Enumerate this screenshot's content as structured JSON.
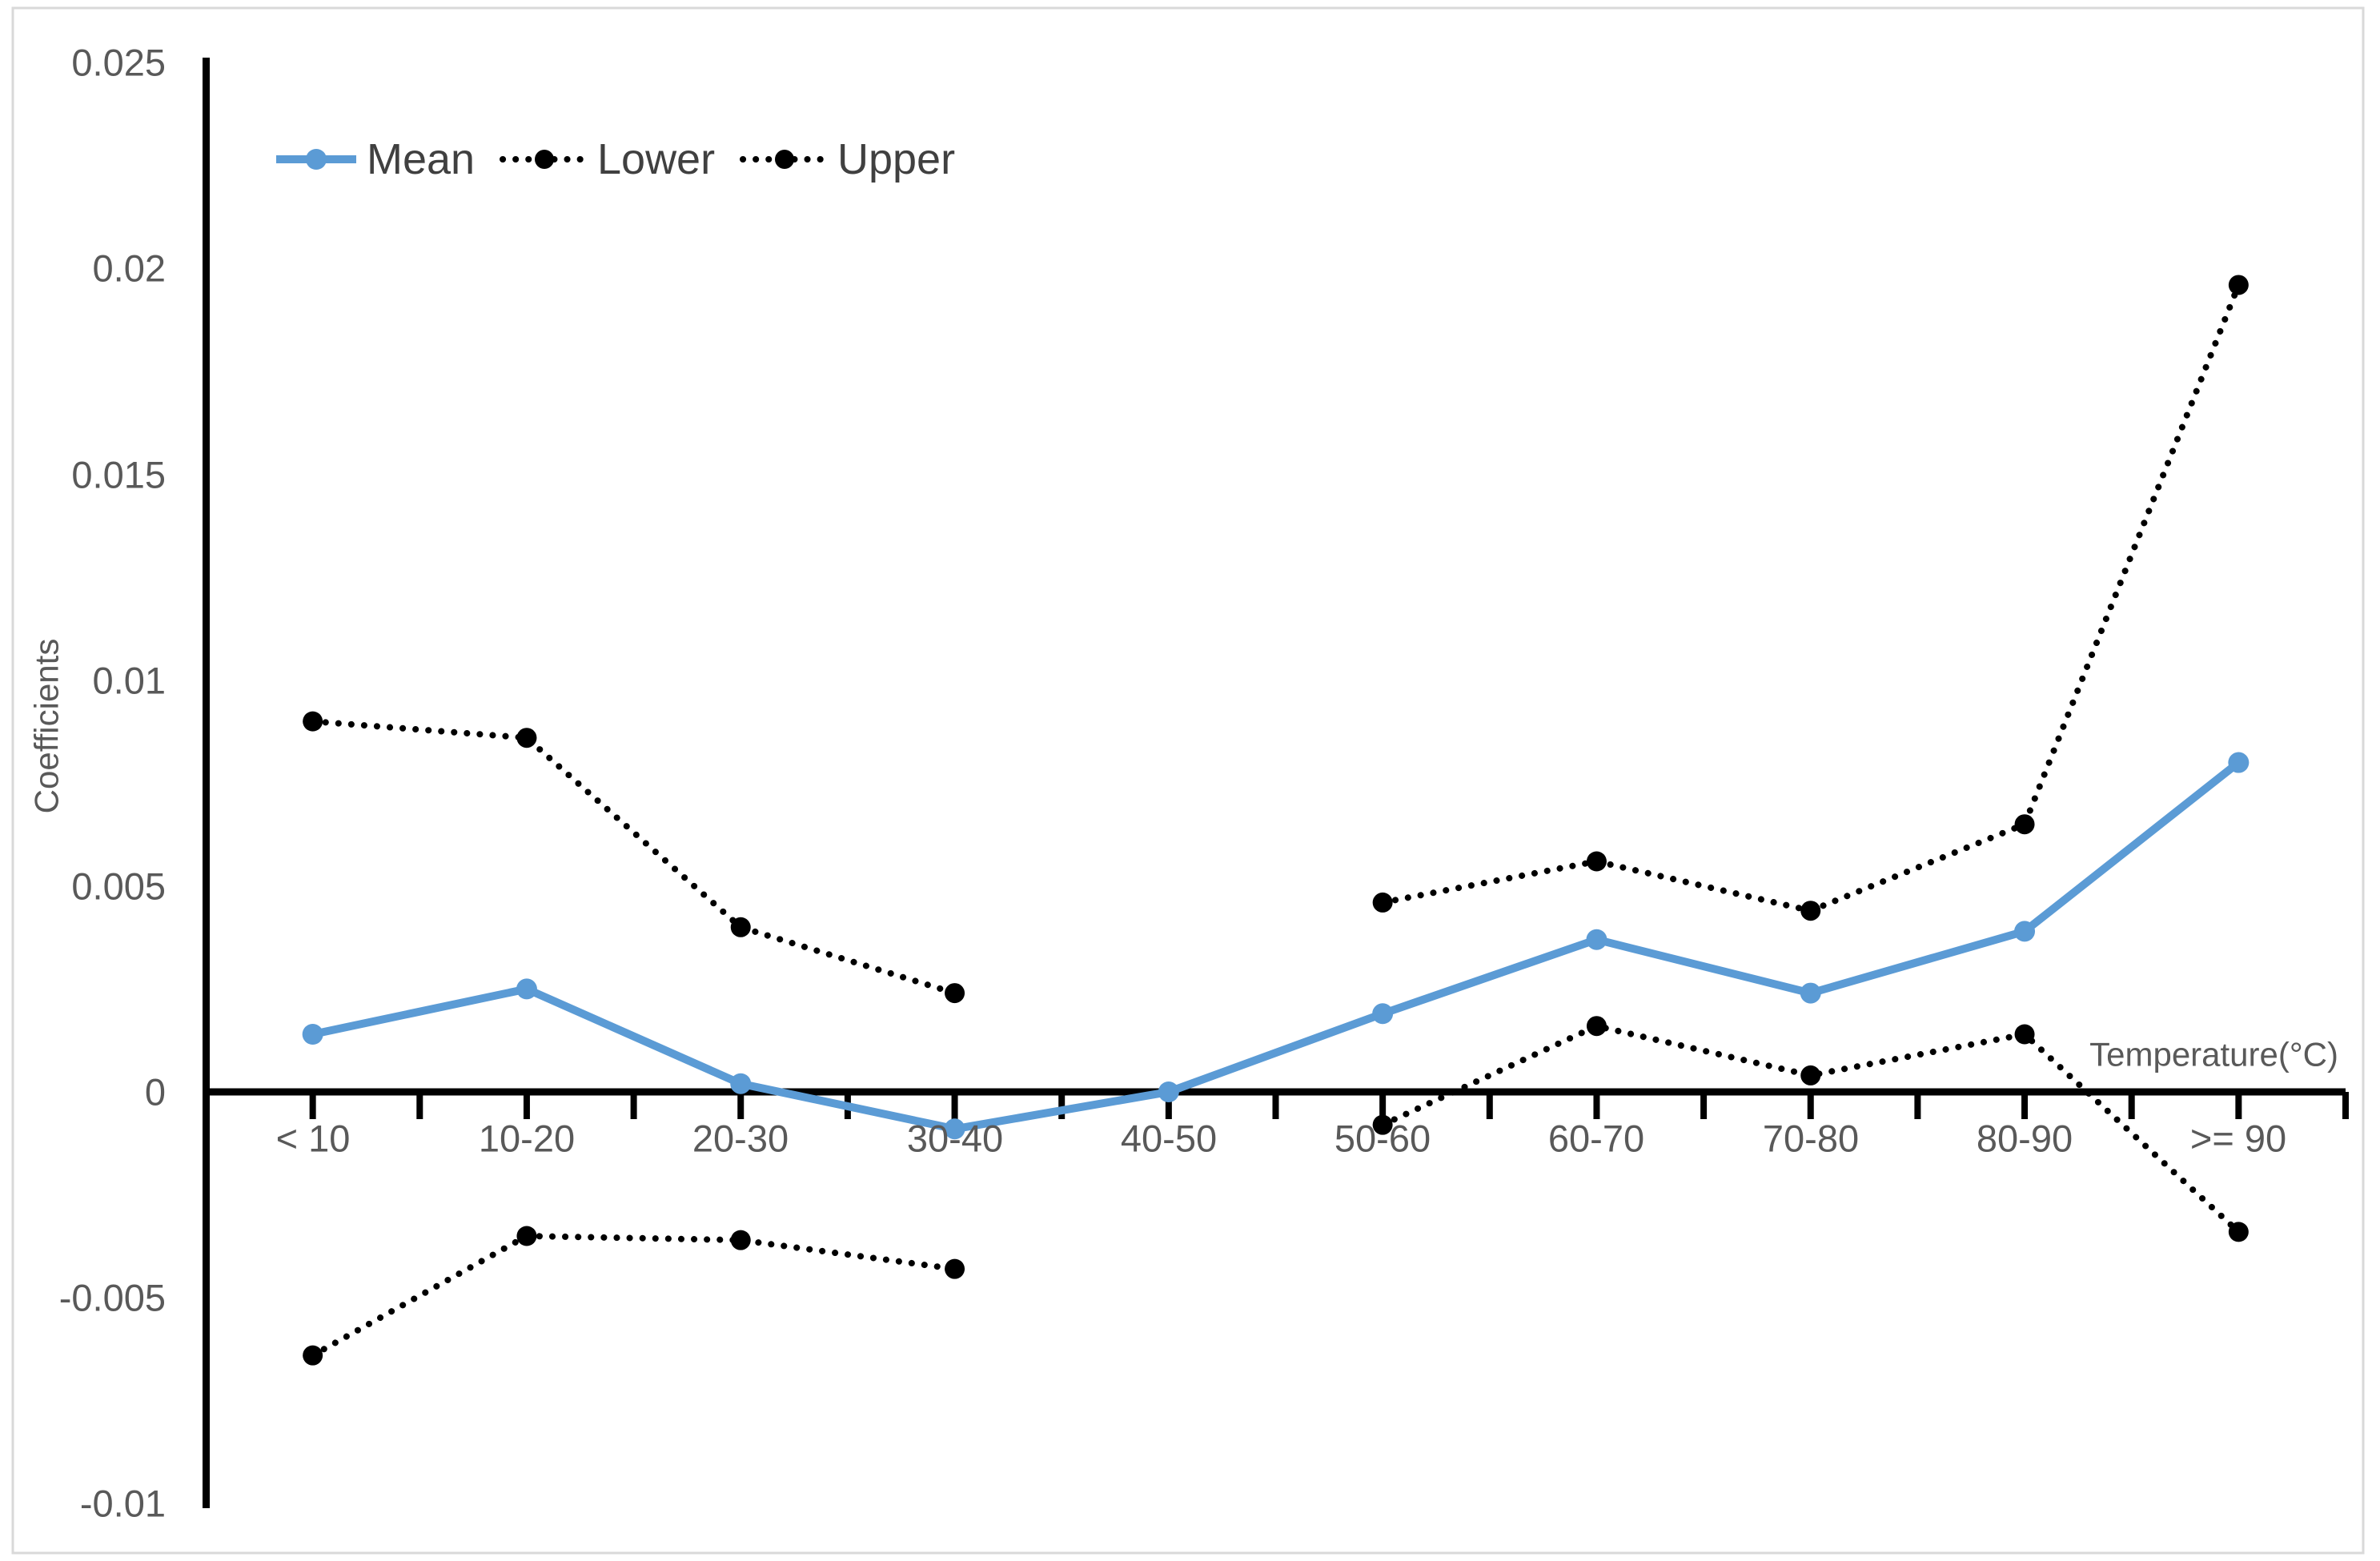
{
  "chart_data": {
    "type": "line",
    "title": "",
    "xlabel": "Temperature(°C)",
    "ylabel": "Coefficients",
    "categories": [
      "< 10",
      "10-20",
      "20-30",
      "30-40",
      "40-50",
      "50-60",
      "60-70",
      "70-80",
      "80-90",
      ">= 90"
    ],
    "series": [
      {
        "name": "Mean",
        "color": "#5B9BD5",
        "line_style": "solid",
        "marker": "circle",
        "values": [
          0.0014,
          0.0025,
          0.0002,
          -0.0009,
          0.0,
          0.0019,
          0.0037,
          0.0024,
          0.0039,
          0.008
        ]
      },
      {
        "name": "Lower",
        "color": "#000000",
        "line_style": "dotted",
        "marker": "circle",
        "values": [
          -0.0064,
          -0.0035,
          -0.0036,
          -0.0043,
          null,
          -0.0008,
          0.0016,
          0.0004,
          0.0014,
          -0.0034
        ]
      },
      {
        "name": "Upper",
        "color": "#000000",
        "line_style": "dotted",
        "marker": "circle",
        "values": [
          0.009,
          0.0086,
          0.004,
          0.0024,
          null,
          0.0046,
          0.0056,
          0.0044,
          0.0065,
          0.0196
        ]
      }
    ],
    "ytick_labels": [
      "0.025",
      "0.02",
      "0.015",
      "0.01",
      "0.005",
      "0",
      "-0.005",
      "-0.01"
    ],
    "ylim": [
      -0.01,
      0.025
    ],
    "xaxis_crosses_at": 0,
    "grid": false,
    "legend_position": "top-left-inside",
    "axis_color": "#000000",
    "border_color": "#D9D9D9"
  }
}
